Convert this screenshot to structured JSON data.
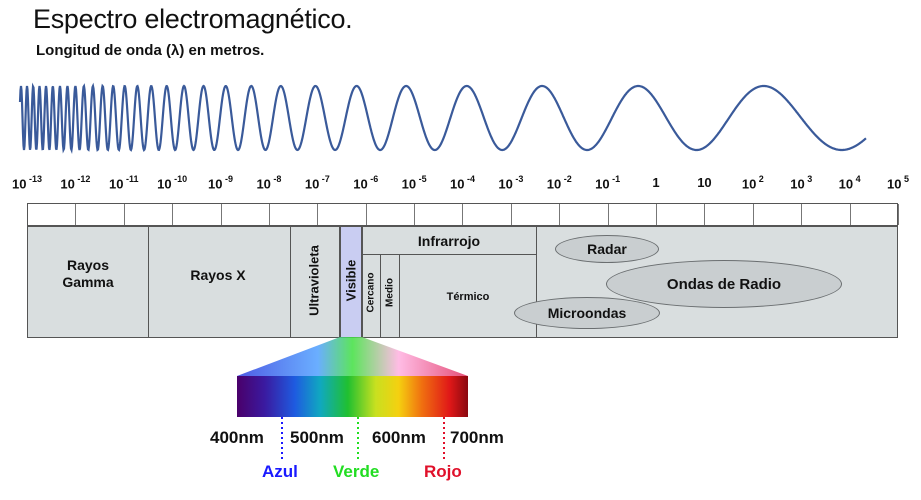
{
  "header": {
    "title": "Espectro electromagnético.",
    "subtitle": "Longitud de onda (λ) en metros."
  },
  "scale": {
    "ticks": [
      {
        "base": "10",
        "exp": "-13"
      },
      {
        "base": "10",
        "exp": "-12"
      },
      {
        "base": "10",
        "exp": "-11"
      },
      {
        "base": "10",
        "exp": "-10"
      },
      {
        "base": "10",
        "exp": "-9"
      },
      {
        "base": "10",
        "exp": "-8"
      },
      {
        "base": "10",
        "exp": "-7"
      },
      {
        "base": "10",
        "exp": "-6"
      },
      {
        "base": "10",
        "exp": "-5"
      },
      {
        "base": "10",
        "exp": "-4"
      },
      {
        "base": "10",
        "exp": "-3"
      },
      {
        "base": "10",
        "exp": "-2"
      },
      {
        "base": "10",
        "exp": "-1"
      },
      {
        "base": "1",
        "exp": ""
      },
      {
        "base": "10",
        "exp": ""
      },
      {
        "base": "10",
        "exp": "2"
      },
      {
        "base": "10",
        "exp": "3"
      },
      {
        "base": "10",
        "exp": "4"
      },
      {
        "base": "10",
        "exp": "5"
      }
    ]
  },
  "regions": {
    "gamma": "Rayos\nGamma",
    "xrays": "Rayos X",
    "uv": "Ultravioleta",
    "visible": "Visible",
    "infrared": "Infrarrojo",
    "ir_near": "Cercano",
    "ir_mid": "Medio",
    "ir_thermal": "Térmico",
    "radar": "Radar",
    "radio": "Ondas de Radio",
    "microwave": "Microondas"
  },
  "visible_detail": {
    "wavelengths": [
      "400nm",
      "500nm",
      "600nm",
      "700nm"
    ],
    "colors": [
      {
        "name": "Azul",
        "color": "#1a1aff"
      },
      {
        "name": "Verde",
        "color": "#22dd22"
      },
      {
        "name": "Rojo",
        "color": "#e0102a"
      }
    ]
  },
  "colors": {
    "wave": "#3a5a9a",
    "band_bg": "#d9dedf",
    "visible_band": "#c9cdf2"
  }
}
